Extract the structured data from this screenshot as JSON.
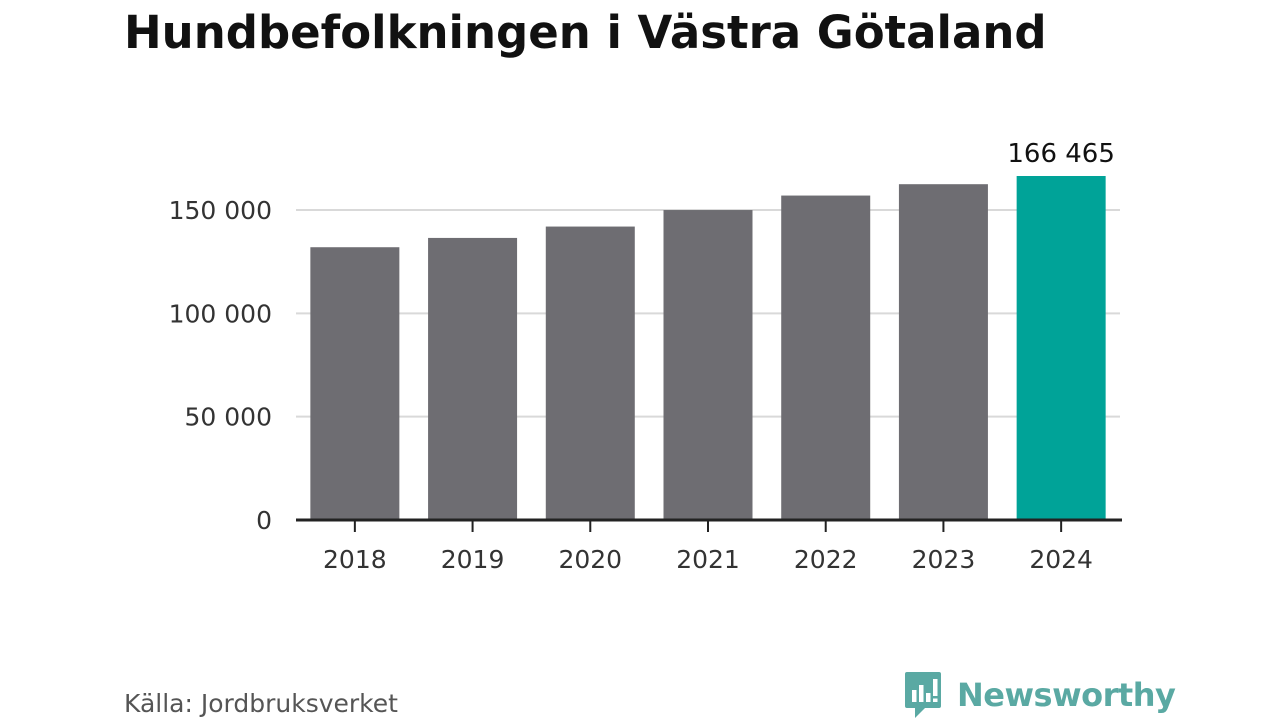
{
  "chart_data": {
    "type": "bar",
    "title": "Hundbefolkningen i Västra Götaland",
    "categories": [
      "2018",
      "2019",
      "2020",
      "2021",
      "2022",
      "2023",
      "2024"
    ],
    "values": [
      132000,
      136500,
      142000,
      150000,
      157000,
      162500,
      166465
    ],
    "data_labels": [
      "",
      "",
      "",
      "",
      "",
      "",
      "166 465"
    ],
    "xlabel": "",
    "ylabel": "",
    "ylim": [
      0,
      166465
    ],
    "yticks": [
      0,
      50000,
      100000,
      150000
    ],
    "ytick_labels": [
      "0",
      "50 000",
      "100 000",
      "150 000"
    ],
    "grid": true,
    "legend": "none",
    "colors": {
      "bar": "#6e6d72",
      "highlight": "#00a398",
      "grid": "#d9d9d9",
      "axis": "#222222"
    }
  },
  "footer": {
    "source": "Källa: Jordbruksverket",
    "brand": "Newsworthy",
    "brand_icon": "newsworthy-logo-icon",
    "brand_color": "#5aa9a3"
  }
}
